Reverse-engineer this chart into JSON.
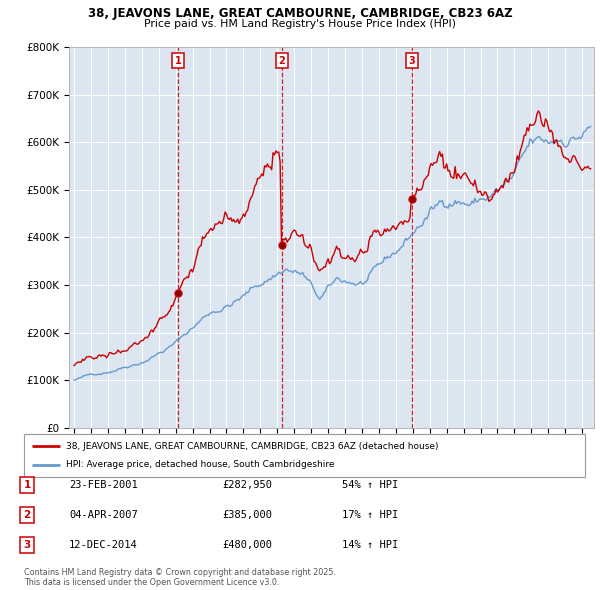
{
  "title": "38, JEAVONS LANE, GREAT CAMBOURNE, CAMBRIDGE, CB23 6AZ",
  "subtitle": "Price paid vs. HM Land Registry's House Price Index (HPI)",
  "legend_line1": "38, JEAVONS LANE, GREAT CAMBOURNE, CAMBRIDGE, CB23 6AZ (detached house)",
  "legend_line2": "HPI: Average price, detached house, South Cambridgeshire",
  "footer": "Contains HM Land Registry data © Crown copyright and database right 2025.\nThis data is licensed under the Open Government Licence v3.0.",
  "sales": [
    {
      "num": 1,
      "date": "23-FEB-2001",
      "price": 282950,
      "pct": "54%",
      "dir": "↑"
    },
    {
      "num": 2,
      "date": "04-APR-2007",
      "price": 385000,
      "pct": "17%",
      "dir": "↑"
    },
    {
      "num": 3,
      "date": "12-DEC-2014",
      "price": 480000,
      "pct": "14%",
      "dir": "↑"
    }
  ],
  "sale_dates_decimal": [
    2001.14,
    2007.27,
    2014.95
  ],
  "sale_prices": [
    282950,
    385000,
    480000
  ],
  "red_color": "#cc0000",
  "blue_color": "#6699cc",
  "chart_bg": "#dce6f1",
  "grid_color": "#ffffff",
  "ylim": [
    0,
    800000
  ],
  "xlim_start": 1994.7,
  "xlim_end": 2025.7
}
